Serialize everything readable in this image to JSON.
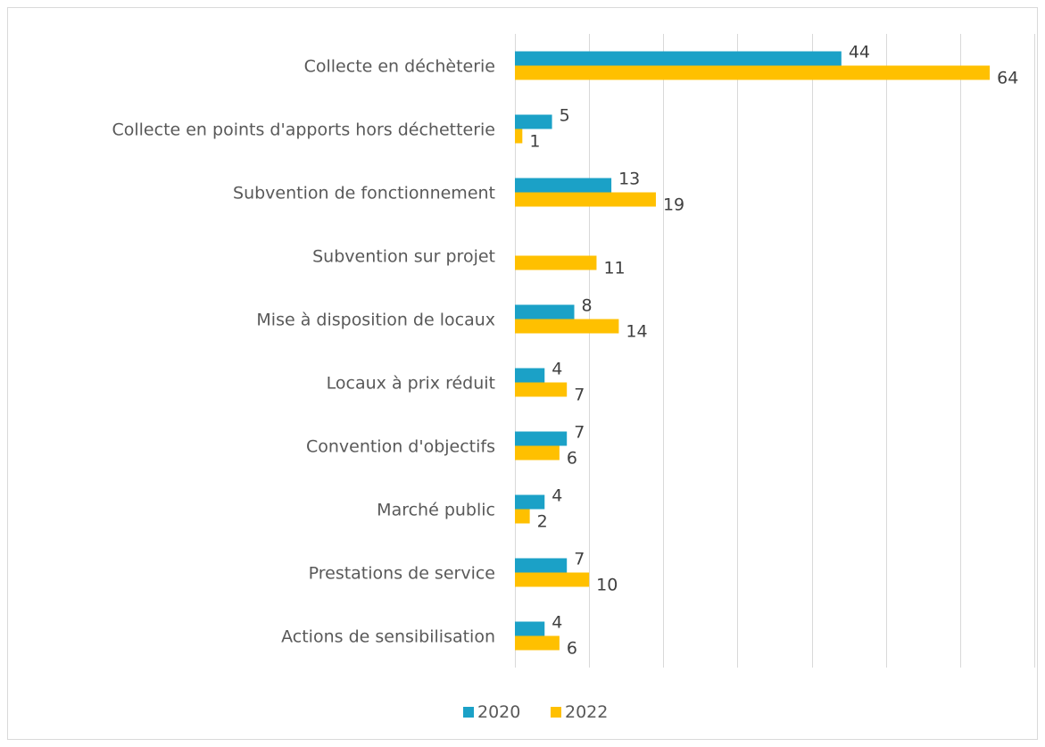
{
  "chart_data": {
    "type": "bar",
    "orientation": "horizontal",
    "categories": [
      "Collecte en déchèterie",
      "Collecte en points d'apports hors déchetterie",
      "Subvention de fonctionnement",
      "Subvention sur projet",
      "Mise à disposition de locaux",
      "Locaux à prix réduit",
      "Convention d'objectifs",
      "Marché public",
      "Prestations de service",
      "Actions de sensibilisation"
    ],
    "series": [
      {
        "name": "2020",
        "color": "#1BA1C7",
        "values": [
          44,
          5,
          13,
          null,
          8,
          4,
          7,
          4,
          7,
          4
        ]
      },
      {
        "name": "2022",
        "color": "#FFC000",
        "values": [
          64,
          1,
          19,
          11,
          14,
          7,
          6,
          2,
          10,
          6
        ]
      }
    ],
    "xlim": [
      0,
      70
    ],
    "grid": true,
    "legend_position": "bottom"
  }
}
